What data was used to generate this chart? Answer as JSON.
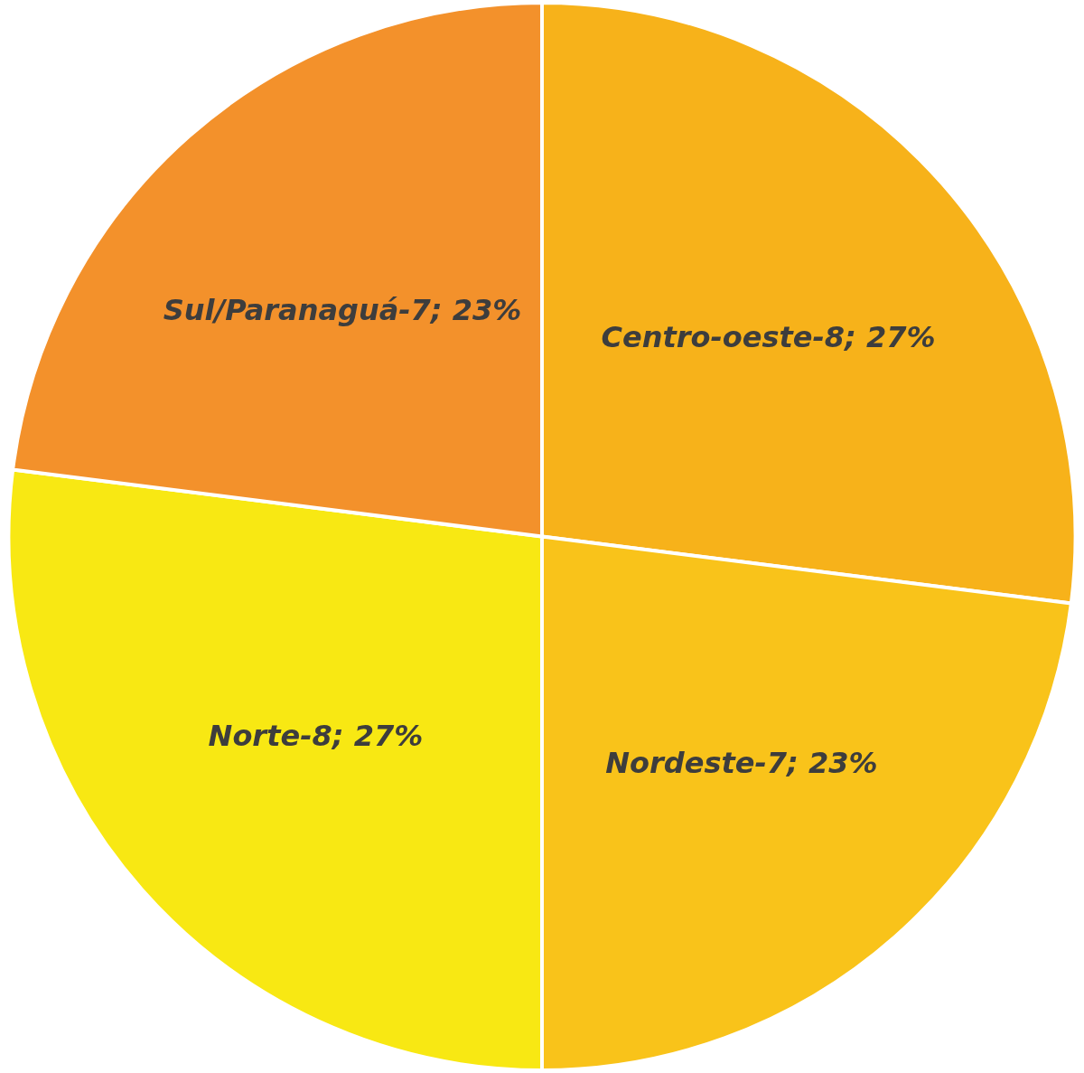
{
  "chart_data": {
    "type": "pie",
    "categories": [
      "Centro-oeste-8",
      "Nordeste-7",
      "Norte-8",
      "Sul/Paranaguá-7"
    ],
    "values": [
      27,
      23,
      27,
      23
    ],
    "value_labels": [
      "27%",
      "23%",
      "27%",
      "23%"
    ],
    "colors": [
      "#f7b21a",
      "#f9c31a",
      "#f8e813",
      "#f3912b"
    ],
    "data_labels": true,
    "legend": false
  }
}
